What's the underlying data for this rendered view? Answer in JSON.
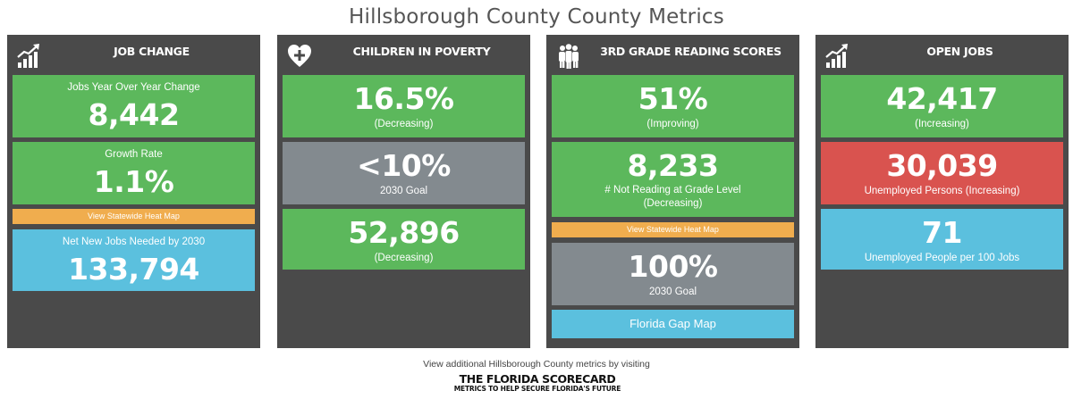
{
  "title": "Hillsborough County County Metrics",
  "colors": {
    "card_bg": "#4a4a4a",
    "green": "#5cb85c",
    "gray": "#838a8f",
    "blue": "#5bc0de",
    "red": "#d9534f",
    "orange": "#f0ad4e"
  },
  "cards": [
    {
      "title": "JOB CHANGE",
      "icon": "bar-chart-growth-icon",
      "tiles": [
        {
          "label_top": "Jobs Year Over Year Change",
          "value": "8,442"
        },
        {
          "label_top": "Growth Rate",
          "value": "1.1%"
        },
        {
          "link": "View Statewide Heat Map"
        },
        {
          "label_top": "Net New Jobs Needed by 2030",
          "value": "133,794"
        }
      ]
    },
    {
      "title": "CHILDREN IN POVERTY",
      "icon": "heart-plus-icon",
      "tiles": [
        {
          "value": "16.5%",
          "label": "(Decreasing)"
        },
        {
          "value": "<10%",
          "label": "2030 Goal"
        },
        {
          "value": "52,896",
          "label": "(Decreasing)"
        }
      ]
    },
    {
      "title": "3RD GRADE READING SCORES",
      "icon": "people-group-icon",
      "tiles": [
        {
          "value": "51%",
          "label": "(Improving)"
        },
        {
          "value": "8,233",
          "label": "# Not Reading at Grade Level",
          "label2": "(Decreasing)"
        },
        {
          "link": "View Statewide Heat Map"
        },
        {
          "value": "100%",
          "label": "2030 Goal"
        },
        {
          "link": "Florida Gap Map"
        }
      ]
    },
    {
      "title": "OPEN JOBS",
      "icon": "bar-chart-growth-icon",
      "tiles": [
        {
          "value": "42,417",
          "label": "(Increasing)"
        },
        {
          "value": "30,039",
          "label": "Unemployed Persons (Increasing)"
        },
        {
          "value": "71",
          "label": "Unemployed People per 100 Jobs"
        }
      ]
    }
  ],
  "footer": {
    "text": "View additional Hillsborough County metrics by visiting",
    "logo_main": "THE FLORIDA SCORECARD",
    "logo_sub": "METRICS TO HELP SECURE FLORIDA'S FUTURE"
  }
}
